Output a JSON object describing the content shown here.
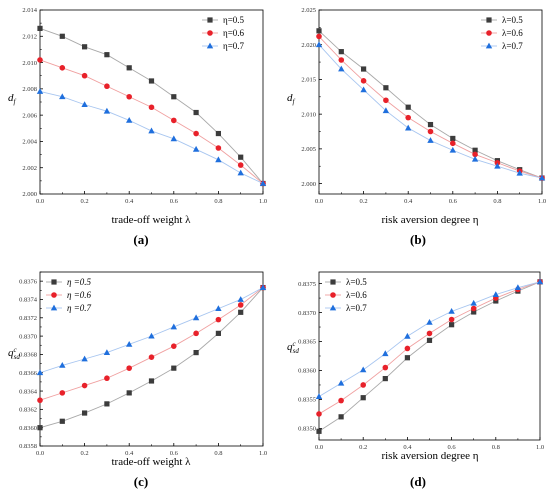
{
  "colors": {
    "series": [
      "#3c3c3c",
      "#e8212a",
      "#1f6fdd"
    ],
    "line": [
      "#a9a9a9",
      "#f0a0a0",
      "#a8c6f0"
    ]
  },
  "chart_data": [
    {
      "id": "a",
      "type": "line",
      "panel_label": "(a)",
      "xlabel": "trade-off weight λ",
      "ylabel": "d_f",
      "xlim": [
        0.0,
        1.0
      ],
      "ylim": [
        2.0,
        2.014
      ],
      "x_ticks": [
        "0.0",
        "0.2",
        "0.4",
        "0.6",
        "0.8",
        "1.0"
      ],
      "y_ticks": [
        "2.000",
        "2.002",
        "2.004",
        "2.006",
        "2.008",
        "2.010",
        "2.012",
        "2.014"
      ],
      "legend_position": "top-right",
      "legend_style": "normal",
      "x": [
        0.0,
        0.1,
        0.2,
        0.3,
        0.4,
        0.5,
        0.6,
        0.7,
        0.8,
        0.9,
        1.0
      ],
      "series": [
        {
          "name": "η=0.5",
          "marker": "square",
          "values": [
            2.0126,
            2.012,
            2.0112,
            2.0106,
            2.0096,
            2.0086,
            2.0074,
            2.0062,
            2.0046,
            2.0028,
            2.0008
          ]
        },
        {
          "name": "η=0.6",
          "marker": "circle",
          "values": [
            2.0102,
            2.0096,
            2.009,
            2.0082,
            2.0074,
            2.0066,
            2.0056,
            2.0046,
            2.0035,
            2.0022,
            2.0008
          ]
        },
        {
          "name": "η=0.7",
          "marker": "triangle",
          "values": [
            2.0078,
            2.0074,
            2.0068,
            2.0063,
            2.0056,
            2.0048,
            2.0042,
            2.0034,
            2.0026,
            2.0016,
            2.0008
          ]
        }
      ]
    },
    {
      "id": "b",
      "type": "line",
      "panel_label": "(b)",
      "xlabel": "risk aversion degree η",
      "ylabel": "d_f",
      "xlim": [
        0.0,
        1.0
      ],
      "ylim": [
        1.9985,
        2.025
      ],
      "x_ticks": [
        "0.0",
        "0.2",
        "0.4",
        "0.6",
        "0.8",
        "1.0"
      ],
      "y_ticks": [
        "2.000",
        "2.005",
        "2.010",
        "2.015",
        "2.020",
        "2.025"
      ],
      "legend_position": "top-right",
      "legend_style": "normal",
      "x": [
        0.0,
        0.1,
        0.2,
        0.3,
        0.4,
        0.5,
        0.6,
        0.7,
        0.8,
        0.9,
        1.0
      ],
      "series": [
        {
          "name": "λ=0.5",
          "marker": "square",
          "values": [
            2.022,
            2.019,
            2.0165,
            2.0138,
            2.011,
            2.0085,
            2.0065,
            2.0048,
            2.0033,
            2.002,
            2.0008
          ]
        },
        {
          "name": "λ=0.6",
          "marker": "circle",
          "values": [
            2.0212,
            2.0178,
            2.0148,
            2.012,
            2.0095,
            2.0075,
            2.0058,
            2.0042,
            2.003,
            2.0018,
            2.0008
          ]
        },
        {
          "name": "λ=0.7",
          "marker": "triangle",
          "values": [
            2.02,
            2.0165,
            2.0135,
            2.0105,
            2.008,
            2.0062,
            2.0048,
            2.0035,
            2.0025,
            2.0015,
            2.0008
          ]
        }
      ]
    },
    {
      "id": "c",
      "type": "line",
      "panel_label": "(c)",
      "xlabel": "trade-off weight λ",
      "ylabel": "q_sd^c",
      "xlim": [
        0.0,
        1.0
      ],
      "ylim": [
        0.8358,
        0.8377
      ],
      "x_ticks": [
        "0.0",
        "0.2",
        "0.4",
        "0.6",
        "0.8",
        "1.0"
      ],
      "y_ticks": [
        "0.8358",
        "0.8360",
        "0.8362",
        "0.8364",
        "0.8366",
        "0.8368",
        "0.8370",
        "0.8372",
        "0.8374",
        "0.8376"
      ],
      "legend_position": "top-left",
      "legend_style": "italic",
      "x": [
        0.0,
        0.1,
        0.2,
        0.3,
        0.4,
        0.5,
        0.6,
        0.7,
        0.8,
        0.9,
        1.0
      ],
      "series": [
        {
          "name": "η =0.5",
          "marker": "square",
          "values": [
            0.836,
            0.83607,
            0.83616,
            0.83626,
            0.83638,
            0.83651,
            0.83665,
            0.83682,
            0.83703,
            0.83726,
            0.83753
          ]
        },
        {
          "name": "η =0.6",
          "marker": "circle",
          "values": [
            0.8363,
            0.83638,
            0.83646,
            0.83654,
            0.83665,
            0.83677,
            0.83689,
            0.83703,
            0.83718,
            0.83734,
            0.83753
          ]
        },
        {
          "name": "η =0.7",
          "marker": "triangle",
          "values": [
            0.8366,
            0.83668,
            0.83675,
            0.83682,
            0.83691,
            0.837,
            0.8371,
            0.8372,
            0.8373,
            0.8374,
            0.83753
          ]
        }
      ]
    },
    {
      "id": "d",
      "type": "line",
      "panel_label": "(d)",
      "xlabel": "risk aversion degree η",
      "ylabel": "q_sd^c",
      "xlim": [
        0.0,
        1.0
      ],
      "ylim": [
        0.8348,
        0.8377
      ],
      "x_ticks": [
        "0.0",
        "0.2",
        "0.4",
        "0.6",
        "0.8",
        "1.0"
      ],
      "y_ticks": [
        "0.8350",
        "0.8355",
        "0.8360",
        "0.8365",
        "0.8370",
        "0.8375"
      ],
      "legend_position": "top-left",
      "legend_style": "normal",
      "x": [
        0.0,
        0.1,
        0.2,
        0.3,
        0.4,
        0.5,
        0.6,
        0.7,
        0.8,
        0.9,
        1.0
      ],
      "series": [
        {
          "name": "λ=0.5",
          "marker": "square",
          "values": [
            0.83495,
            0.8352,
            0.83553,
            0.83586,
            0.83622,
            0.83652,
            0.83679,
            0.83701,
            0.8372,
            0.83737,
            0.83753
          ]
        },
        {
          "name": "λ=0.6",
          "marker": "circle",
          "values": [
            0.83525,
            0.83548,
            0.83575,
            0.83605,
            0.83638,
            0.83664,
            0.83688,
            0.83707,
            0.83725,
            0.8374,
            0.83753
          ]
        },
        {
          "name": "λ=0.7",
          "marker": "triangle",
          "values": [
            0.83555,
            0.83578,
            0.83601,
            0.83629,
            0.83659,
            0.83683,
            0.83702,
            0.83716,
            0.83731,
            0.83743,
            0.83753
          ]
        }
      ]
    }
  ]
}
